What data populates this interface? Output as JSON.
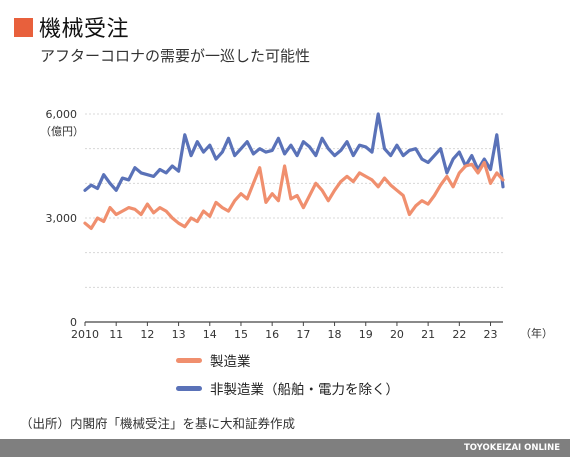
{
  "title": "機械受注",
  "subtitle": "アフターコロナの需要が一巡した可能性",
  "source": "（出所）内閣府「機械受注」を基に大和証券作成",
  "brand": "TOYOKEIZAI ONLINE",
  "colors": {
    "accent": "#e8603c",
    "manufacturing": "#f08f6e",
    "nonmanufacturing": "#5a72b8",
    "grid": "#d8d8d8"
  },
  "chart_data": {
    "type": "line",
    "unit_label": "（億円）",
    "x_unit_label": "（年）",
    "ylim": [
      0,
      6000
    ],
    "y_ticks": [
      0,
      3000,
      6000
    ],
    "y_tick_labels": [
      "0",
      "3,000",
      "6,000"
    ],
    "xlim": [
      2010,
      2023.4
    ],
    "x_ticks": [
      2010,
      2011,
      2012,
      2013,
      2014,
      2015,
      2016,
      2017,
      2018,
      2019,
      2020,
      2021,
      2022,
      2023
    ],
    "x_tick_labels": [
      "2010",
      "11",
      "12",
      "13",
      "14",
      "15",
      "16",
      "17",
      "18",
      "19",
      "20",
      "21",
      "22",
      "23"
    ],
    "grid": "horizontal",
    "legend_placement": "bottom-center",
    "series": [
      {
        "name": "製造業",
        "x": [
          2010.0,
          2010.2,
          2010.4,
          2010.6,
          2010.8,
          2011.0,
          2011.2,
          2011.4,
          2011.6,
          2011.8,
          2012.0,
          2012.2,
          2012.4,
          2012.6,
          2012.8,
          2013.0,
          2013.2,
          2013.4,
          2013.6,
          2013.8,
          2014.0,
          2014.2,
          2014.4,
          2014.6,
          2014.8,
          2015.0,
          2015.2,
          2015.4,
          2015.6,
          2015.8,
          2016.0,
          2016.2,
          2016.4,
          2016.6,
          2016.8,
          2017.0,
          2017.2,
          2017.4,
          2017.6,
          2017.8,
          2018.0,
          2018.2,
          2018.4,
          2018.6,
          2018.8,
          2019.0,
          2019.2,
          2019.4,
          2019.6,
          2019.8,
          2020.0,
          2020.2,
          2020.4,
          2020.6,
          2020.8,
          2021.0,
          2021.2,
          2021.4,
          2021.6,
          2021.8,
          2022.0,
          2022.2,
          2022.4,
          2022.6,
          2022.8,
          2023.0,
          2023.2,
          2023.4
        ],
        "values": [
          2850,
          2700,
          3000,
          2900,
          3300,
          3100,
          3200,
          3300,
          3250,
          3100,
          3400,
          3150,
          3300,
          3200,
          3000,
          2850,
          2750,
          3000,
          2900,
          3200,
          3050,
          3450,
          3300,
          3200,
          3500,
          3700,
          3550,
          4000,
          4450,
          3450,
          3700,
          3500,
          4500,
          3550,
          3650,
          3300,
          3650,
          4000,
          3800,
          3500,
          3800,
          4050,
          4200,
          4050,
          4300,
          4200,
          4100,
          3900,
          4150,
          3950,
          3800,
          3650,
          3100,
          3350,
          3500,
          3400,
          3650,
          3950,
          4200,
          3900,
          4300,
          4500,
          4550,
          4300,
          4600,
          4000,
          4300,
          4100
        ]
      },
      {
        "name": "非製造業（船舶・電力を除く）",
        "x": [
          2010.0,
          2010.2,
          2010.4,
          2010.6,
          2010.8,
          2011.0,
          2011.2,
          2011.4,
          2011.6,
          2011.8,
          2012.0,
          2012.2,
          2012.4,
          2012.6,
          2012.8,
          2013.0,
          2013.2,
          2013.4,
          2013.6,
          2013.8,
          2014.0,
          2014.2,
          2014.4,
          2014.6,
          2014.8,
          2015.0,
          2015.2,
          2015.4,
          2015.6,
          2015.8,
          2016.0,
          2016.2,
          2016.4,
          2016.6,
          2016.8,
          2017.0,
          2017.2,
          2017.4,
          2017.6,
          2017.8,
          2018.0,
          2018.2,
          2018.4,
          2018.6,
          2018.8,
          2019.0,
          2019.2,
          2019.4,
          2019.6,
          2019.8,
          2020.0,
          2020.2,
          2020.4,
          2020.6,
          2020.8,
          2021.0,
          2021.2,
          2021.4,
          2021.6,
          2021.8,
          2022.0,
          2022.2,
          2022.4,
          2022.6,
          2022.8,
          2023.0,
          2023.2,
          2023.4
        ],
        "values": [
          3800,
          3950,
          3850,
          4250,
          4000,
          3800,
          4150,
          4100,
          4450,
          4300,
          4250,
          4200,
          4400,
          4300,
          4500,
          4350,
          5400,
          4800,
          5200,
          4900,
          5100,
          4700,
          4900,
          5300,
          4800,
          5000,
          5200,
          4850,
          5000,
          4900,
          4950,
          5300,
          4850,
          5100,
          4800,
          5200,
          5050,
          4800,
          5300,
          5000,
          4800,
          4950,
          5200,
          4800,
          5100,
          5050,
          4900,
          6000,
          5000,
          4800,
          5100,
          4800,
          4950,
          5000,
          4700,
          4600,
          4800,
          5000,
          4300,
          4700,
          4900,
          4500,
          4800,
          4400,
          4700,
          4400,
          5400,
          3900
        ]
      }
    ]
  }
}
